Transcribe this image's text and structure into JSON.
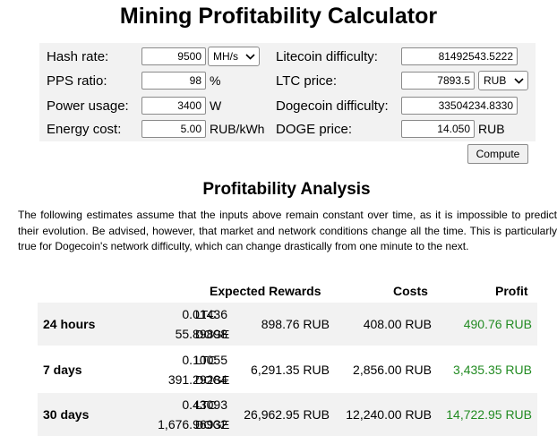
{
  "title": "Mining Profitability Calculator",
  "inputs": {
    "hash_rate": {
      "label": "Hash rate:",
      "value": "9500",
      "unit": "MH/s"
    },
    "pps_ratio": {
      "label": "PPS ratio:",
      "value": "98",
      "unit": "%"
    },
    "power_usage": {
      "label": "Power usage:",
      "value": "3400",
      "unit": "W"
    },
    "energy_cost": {
      "label": "Energy cost:",
      "value": "5.00",
      "unit": "RUB/kWh"
    },
    "ltc_difficulty": {
      "label": "Litecoin difficulty:",
      "value": "81492543.5222"
    },
    "ltc_price": {
      "label": "LTC price:",
      "value": "7893.5",
      "currency": "RUB"
    },
    "doge_difficulty": {
      "label": "Dogecoin difficulty:",
      "value": "33504234.8330"
    },
    "doge_price": {
      "label": "DOGE price:",
      "value": "14.050",
      "unit": "RUB"
    }
  },
  "compute_label": "Compute",
  "analysis": {
    "title": "Profitability Analysis",
    "intro": "The following estimates assume that the inputs above remain constant over time, as it is impossible to predict their evolution. Be advised, however, that market and network conditions change all the time. This is particularly true for Dogecoin's network difficulty, which can change drastically from one minute to the next."
  },
  "table": {
    "headers": {
      "rewards": "Expected Rewards",
      "costs": "Costs",
      "profit": "Profit"
    },
    "rows": [
      {
        "period": "24 hours",
        "ltc": "0.01436",
        "ltc_unit": "LTC",
        "doge": "55.89898",
        "doge_unit": "DOGE",
        "rewards": "898.76 RUB",
        "costs": "408.00 RUB",
        "profit": "490.76 RUB"
      },
      {
        "period": "7 days",
        "ltc": "0.10055",
        "ltc_unit": "LTC",
        "doge": "391.29284",
        "doge_unit": "DOGE",
        "rewards": "6,291.35 RUB",
        "costs": "2,856.00 RUB",
        "profit": "3,435.35 RUB"
      },
      {
        "period": "30 days",
        "ltc": "0.43093",
        "ltc_unit": "LTC",
        "doge": "1,676.96932",
        "doge_unit": "DOGE",
        "rewards": "26,962.95 RUB",
        "costs": "12,240.00 RUB",
        "profit": "14,722.95 RUB"
      }
    ]
  },
  "colors": {
    "panel_bg": "#f2f2f2",
    "profit": "#228b22"
  }
}
